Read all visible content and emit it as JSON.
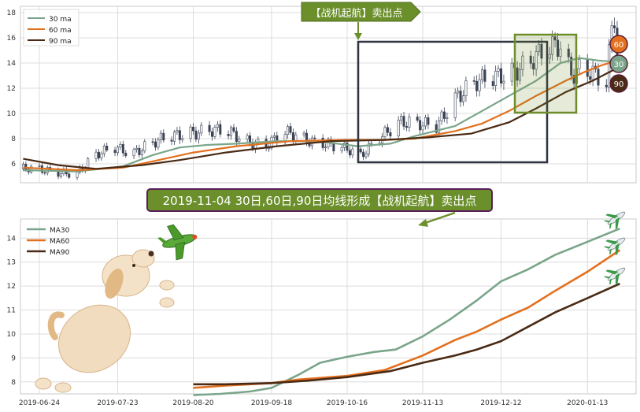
{
  "colors": {
    "ma30": "#7aa58a",
    "ma60": "#e2701e",
    "ma90": "#4a2a14",
    "candle": "#3a4255",
    "box_dark": "#2f3440",
    "box_green": "#6f8d2a",
    "callout_bg": "#6b8f2a",
    "callout_border": "#5a1f5a"
  },
  "top_callout": "【战机起航】卖出点",
  "bottom_callout": "2019-11-04 30日,60日,90日均线形成【战机起航】卖出点",
  "badges": [
    "60",
    "30",
    "90"
  ],
  "icons": [
    "plane-icon",
    "dog-with-plane-illustration"
  ],
  "chart_data": [
    {
      "type": "line",
      "subtype": "candlestick-with-moving-averages",
      "title": "",
      "ylim": [
        4.5,
        18.5
      ],
      "yticks": [
        6,
        8,
        10,
        12,
        14,
        16,
        18
      ],
      "legend": {
        "placement": "top-left",
        "entries": [
          "30 ma",
          "60 ma",
          "90 ma"
        ]
      },
      "grid": true,
      "x_range": [
        "2019-06-17",
        "2020-01-31"
      ],
      "close_series": [
        [
          "2019-06-18",
          5.6
        ],
        [
          "2019-06-28",
          5.4
        ],
        [
          "2019-07-08",
          5.3
        ],
        [
          "2019-07-15",
          6.6
        ],
        [
          "2019-07-22",
          7.3
        ],
        [
          "2019-07-29",
          7.0
        ],
        [
          "2019-08-05",
          7.6
        ],
        [
          "2019-08-12",
          8.1
        ],
        [
          "2019-08-19",
          8.6
        ],
        [
          "2019-08-26",
          8.7
        ],
        [
          "2019-09-02",
          8.4
        ],
        [
          "2019-09-09",
          7.8
        ],
        [
          "2019-09-16",
          7.6
        ],
        [
          "2019-09-23",
          8.4
        ],
        [
          "2019-09-30",
          7.9
        ],
        [
          "2019-10-07",
          7.8
        ],
        [
          "2019-10-14",
          7.3
        ],
        [
          "2019-10-21",
          6.5
        ],
        [
          "2019-10-28",
          8.2
        ],
        [
          "2019-11-04",
          9.4
        ],
        [
          "2019-11-11",
          9.0
        ],
        [
          "2019-11-18",
          9.0
        ],
        [
          "2019-11-25",
          11.4
        ],
        [
          "2019-12-02",
          12.3
        ],
        [
          "2019-12-09",
          12.7
        ],
        [
          "2019-12-16",
          13.5
        ],
        [
          "2019-12-23",
          14.2
        ],
        [
          "2019-12-30",
          15.0
        ],
        [
          "2020-01-03",
          15.3
        ],
        [
          "2020-01-07",
          13.2
        ],
        [
          "2020-01-10",
          13.8
        ],
        [
          "2020-01-14",
          13.5
        ],
        [
          "2020-01-17",
          12.8
        ],
        [
          "2020-01-20",
          12.2
        ],
        [
          "2020-01-22",
          16.5
        ],
        [
          "2020-01-23",
          17.5
        ],
        [
          "2020-01-24",
          14.0
        ]
      ],
      "series": [
        {
          "name": "30 ma",
          "points": [
            [
              "2019-06-18",
              5.5
            ],
            [
              "2019-07-08",
              5.4
            ],
            [
              "2019-07-25",
              5.8
            ],
            [
              "2019-08-05",
              6.7
            ],
            [
              "2019-08-15",
              7.3
            ],
            [
              "2019-08-25",
              7.5
            ],
            [
              "2019-09-05",
              7.6
            ],
            [
              "2019-09-20",
              7.8
            ],
            [
              "2019-10-05",
              7.8
            ],
            [
              "2019-10-20",
              7.4
            ],
            [
              "2019-11-01",
              7.6
            ],
            [
              "2019-11-10",
              8.2
            ],
            [
              "2019-11-25",
              9.0
            ],
            [
              "2019-12-05",
              10.2
            ],
            [
              "2019-12-15",
              11.4
            ],
            [
              "2019-12-25",
              12.6
            ],
            [
              "2020-01-03",
              14.0
            ],
            [
              "2020-01-10",
              14.4
            ],
            [
              "2020-01-17",
              14.2
            ],
            [
              "2020-01-23",
              14.1
            ]
          ]
        },
        {
          "name": "60 ma",
          "points": [
            [
              "2019-06-18",
              5.7
            ],
            [
              "2019-07-08",
              5.5
            ],
            [
              "2019-07-25",
              5.7
            ],
            [
              "2019-08-05",
              6.2
            ],
            [
              "2019-08-20",
              6.9
            ],
            [
              "2019-09-05",
              7.4
            ],
            [
              "2019-09-25",
              7.8
            ],
            [
              "2019-10-15",
              7.9
            ],
            [
              "2019-10-30",
              7.9
            ],
            [
              "2019-11-10",
              8.0
            ],
            [
              "2019-11-25",
              8.6
            ],
            [
              "2019-12-05",
              9.2
            ],
            [
              "2019-12-15",
              10.2
            ],
            [
              "2019-12-25",
              11.4
            ],
            [
              "2020-01-05",
              12.6
            ],
            [
              "2020-01-12",
              13.3
            ],
            [
              "2020-01-18",
              13.8
            ],
            [
              "2020-01-24",
              14.2
            ]
          ]
        },
        {
          "name": "90 ma",
          "points": [
            [
              "2019-06-18",
              6.4
            ],
            [
              "2019-07-01",
              5.9
            ],
            [
              "2019-07-15",
              5.6
            ],
            [
              "2019-08-01",
              5.9
            ],
            [
              "2019-08-15",
              6.3
            ],
            [
              "2019-09-01",
              6.9
            ],
            [
              "2019-09-20",
              7.4
            ],
            [
              "2019-10-10",
              7.8
            ],
            [
              "2019-10-30",
              7.9
            ],
            [
              "2019-11-15",
              8.1
            ],
            [
              "2019-12-01",
              8.4
            ],
            [
              "2019-12-15",
              9.3
            ],
            [
              "2019-12-25",
              10.4
            ],
            [
              "2020-01-05",
              11.7
            ],
            [
              "2020-01-15",
              12.6
            ],
            [
              "2020-01-24",
              13.6
            ]
          ]
        }
      ]
    },
    {
      "type": "line",
      "title": "",
      "ylim": [
        7.5,
        14.8
      ],
      "yticks": [
        8,
        9,
        10,
        11,
        12,
        13,
        14
      ],
      "xticks": [
        "2019-06-24",
        "2019-07-23",
        "2019-08-20",
        "2019-09-18",
        "2019-10-16",
        "2019-11-13",
        "2019-12-12",
        "2020-01-13"
      ],
      "x_range": [
        "2019-06-17",
        "2020-01-31"
      ],
      "legend": {
        "placement": "top-left",
        "entries": [
          "MA30",
          "MA60",
          "MA90"
        ]
      },
      "grid": true,
      "series": [
        {
          "name": "MA30",
          "points": [
            [
              "2019-08-20",
              7.45
            ],
            [
              "2019-08-30",
              7.5
            ],
            [
              "2019-09-10",
              7.6
            ],
            [
              "2019-09-18",
              7.75
            ],
            [
              "2019-09-28",
              8.3
            ],
            [
              "2019-10-06",
              8.8
            ],
            [
              "2019-10-16",
              9.05
            ],
            [
              "2019-10-26",
              9.25
            ],
            [
              "2019-11-03",
              9.35
            ],
            [
              "2019-11-13",
              9.9
            ],
            [
              "2019-11-23",
              10.6
            ],
            [
              "2019-12-03",
              11.4
            ],
            [
              "2019-12-12",
              12.2
            ],
            [
              "2019-12-22",
              12.7
            ],
            [
              "2020-01-01",
              13.3
            ],
            [
              "2020-01-13",
              13.85
            ],
            [
              "2020-01-25",
              14.4
            ]
          ]
        },
        {
          "name": "MA60",
          "points": [
            [
              "2019-08-20",
              7.75
            ],
            [
              "2019-09-01",
              7.85
            ],
            [
              "2019-09-18",
              7.95
            ],
            [
              "2019-09-28",
              8.1
            ],
            [
              "2019-10-16",
              8.25
            ],
            [
              "2019-10-30",
              8.5
            ],
            [
              "2019-11-13",
              9.1
            ],
            [
              "2019-11-25",
              9.75
            ],
            [
              "2019-12-03",
              10.1
            ],
            [
              "2019-12-12",
              10.6
            ],
            [
              "2019-12-22",
              11.1
            ],
            [
              "2020-01-01",
              11.8
            ],
            [
              "2020-01-13",
              12.6
            ],
            [
              "2020-01-25",
              13.5
            ]
          ]
        },
        {
          "name": "MA90",
          "points": [
            [
              "2019-08-20",
              7.9
            ],
            [
              "2019-09-01",
              7.9
            ],
            [
              "2019-09-18",
              7.95
            ],
            [
              "2019-10-01",
              8.05
            ],
            [
              "2019-10-16",
              8.2
            ],
            [
              "2019-11-01",
              8.45
            ],
            [
              "2019-11-13",
              8.8
            ],
            [
              "2019-11-25",
              9.1
            ],
            [
              "2019-12-03",
              9.35
            ],
            [
              "2019-12-12",
              9.7
            ],
            [
              "2019-12-22",
              10.3
            ],
            [
              "2020-01-01",
              10.9
            ],
            [
              "2020-01-13",
              11.5
            ],
            [
              "2020-01-25",
              12.1
            ]
          ]
        }
      ]
    }
  ]
}
